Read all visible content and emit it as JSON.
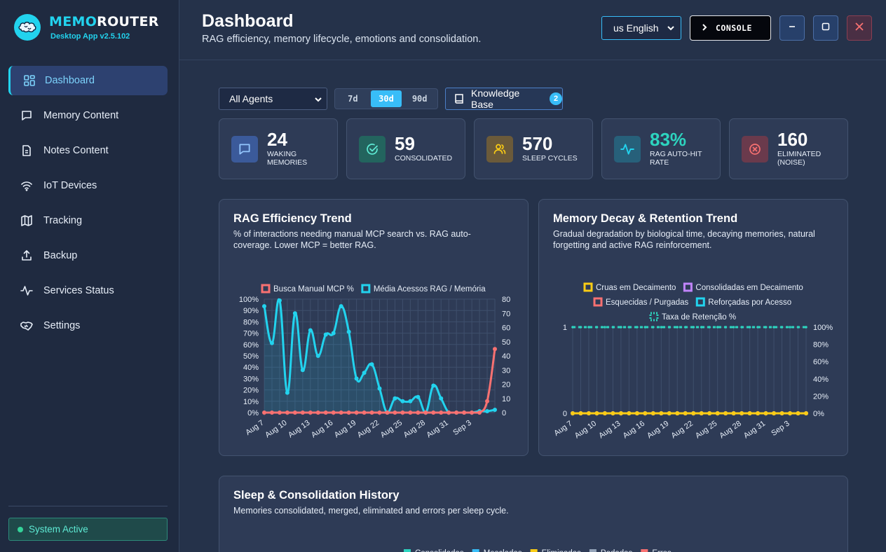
{
  "app": {
    "name_part1": "MEMO",
    "name_part2": "ROUTER",
    "version": "Desktop App v2.5.102"
  },
  "sidebar": {
    "items": [
      {
        "label": "Dashboard",
        "icon": "dashboard-icon",
        "active": true
      },
      {
        "label": "Memory Content",
        "icon": "message-icon"
      },
      {
        "label": "Notes Content",
        "icon": "file-text-icon"
      },
      {
        "label": "IoT Devices",
        "icon": "wifi-icon"
      },
      {
        "label": "Tracking",
        "icon": "map-icon"
      },
      {
        "label": "Backup",
        "icon": "upload-icon"
      },
      {
        "label": "Services Status",
        "icon": "activity-icon"
      },
      {
        "label": "Settings",
        "icon": "handshake-icon"
      }
    ],
    "status": "System Active"
  },
  "header": {
    "title": "Dashboard",
    "subtitle": "RAG efficiency, memory lifecycle, emotions and consolidation.",
    "language": "us English",
    "console_label": "CONSOLE"
  },
  "filters": {
    "agent": "All Agents",
    "ranges": [
      "7d",
      "30d",
      "90d"
    ],
    "active_range": "30d",
    "kb_label": "Knowledge Base",
    "kb_count": "2"
  },
  "stats": [
    {
      "value": "24",
      "label": "WAKING MEMORIES",
      "color": "#60a5fa"
    },
    {
      "value": "59",
      "label": "CONSOLIDATED",
      "color": "#2dd4bf"
    },
    {
      "value": "570",
      "label": "SLEEP CYCLES",
      "color": "#facc15"
    },
    {
      "value": "83%",
      "label": "RAG AUTO-HIT RATE",
      "color": "#22d3ee"
    },
    {
      "value": "160",
      "label": "ELIMINATED (NOISE)",
      "color": "#f87171"
    }
  ],
  "cards": {
    "rag": {
      "title": "RAG Efficiency Trend",
      "subtitle": "% of interactions needing manual MCP search vs. RAG auto-coverage. Lower MCP = better RAG."
    },
    "decay": {
      "title": "Memory Decay & Retention Trend",
      "subtitle": "Gradual degradation by biological time, decaying memories, natural forgetting and active RAG reinforcement."
    },
    "sleep": {
      "title": "Sleep & Consolidation History",
      "subtitle": "Memories consolidated, merged, eliminated and errors per sleep cycle.",
      "legend": [
        {
          "label": "Consolidadas",
          "color": "#2dd4bf"
        },
        {
          "label": "Mescladas",
          "color": "#38bdf8"
        },
        {
          "label": "Eliminadas",
          "color": "#facc15"
        },
        {
          "label": "Podadas",
          "color": "#94a3b8"
        },
        {
          "label": "Erros",
          "color": "#f87171"
        }
      ]
    }
  },
  "chart_data": [
    {
      "type": "line",
      "title": "RAG Efficiency Trend",
      "x": [
        "Aug 7",
        "Aug 8",
        "Aug 9",
        "Aug 10",
        "Aug 11",
        "Aug 12",
        "Aug 13",
        "Aug 14",
        "Aug 15",
        "Aug 16",
        "Aug 17",
        "Aug 18",
        "Aug 19",
        "Aug 20",
        "Aug 21",
        "Aug 22",
        "Aug 23",
        "Aug 24",
        "Aug 25",
        "Aug 26",
        "Aug 27",
        "Aug 28",
        "Aug 29",
        "Aug 30",
        "Aug 31",
        "Sep 1",
        "Sep 2",
        "Sep 3",
        "Sep 4",
        "Sep 5",
        "Sep 6"
      ],
      "tick_labels": [
        "Aug 7",
        "Aug 10",
        "Aug 13",
        "Aug 16",
        "Aug 19",
        "Aug 22",
        "Aug 25",
        "Aug 28",
        "Aug 31",
        "Sep 3"
      ],
      "series": [
        {
          "name": "Busca Manual MCP %",
          "axis": "left",
          "color": "#f87171",
          "values": [
            0,
            0,
            0,
            0,
            0,
            0,
            0,
            0,
            0,
            0,
            0,
            0,
            0,
            0,
            0,
            0,
            0,
            0,
            0,
            0,
            0,
            0,
            0,
            0,
            0,
            0,
            0,
            0,
            0,
            10,
            56
          ]
        },
        {
          "name": "Média Acessos RAG / Memória",
          "axis": "right",
          "color": "#22d3ee",
          "values": [
            75,
            49,
            79,
            14,
            70,
            30,
            58,
            40,
            55,
            56,
            75,
            57,
            24,
            28,
            34,
            17,
            0,
            10,
            8,
            8,
            11,
            0,
            19,
            10,
            0,
            0,
            0,
            0,
            1,
            1,
            2
          ]
        }
      ],
      "y_left": {
        "min": 0,
        "max": 100,
        "ticks": [
          "0%",
          "10%",
          "20%",
          "30%",
          "40%",
          "50%",
          "60%",
          "70%",
          "80%",
          "90%",
          "100%"
        ]
      },
      "y_right": {
        "min": 0,
        "max": 80,
        "ticks": [
          "0",
          "10",
          "20",
          "30",
          "40",
          "50",
          "60",
          "70",
          "80"
        ]
      },
      "grid": true,
      "legend": "top"
    },
    {
      "type": "line",
      "title": "Memory Decay & Retention Trend",
      "x": [
        "Aug 7",
        "Aug 8",
        "Aug 9",
        "Aug 10",
        "Aug 11",
        "Aug 12",
        "Aug 13",
        "Aug 14",
        "Aug 15",
        "Aug 16",
        "Aug 17",
        "Aug 18",
        "Aug 19",
        "Aug 20",
        "Aug 21",
        "Aug 22",
        "Aug 23",
        "Aug 24",
        "Aug 25",
        "Aug 26",
        "Aug 27",
        "Aug 28",
        "Aug 29",
        "Aug 30",
        "Aug 31",
        "Sep 1",
        "Sep 2",
        "Sep 3",
        "Sep 4",
        "Sep 5"
      ],
      "tick_labels": [
        "Aug 7",
        "Aug 10",
        "Aug 13",
        "Aug 16",
        "Aug 19",
        "Aug 22",
        "Aug 25",
        "Aug 28",
        "Aug 31",
        "Sep 3"
      ],
      "series": [
        {
          "name": "Cruas em Decaimento",
          "axis": "left",
          "color": "#facc15",
          "values": [
            0,
            0,
            0,
            0,
            0,
            0,
            0,
            0,
            0,
            0,
            0,
            0,
            0,
            0,
            0,
            0,
            0,
            0,
            0,
            0,
            0,
            0,
            0,
            0,
            0,
            0,
            0,
            0,
            0,
            0
          ]
        },
        {
          "name": "Consolidadas em Decaimento",
          "axis": "left",
          "color": "#c084fc",
          "values": [
            0,
            0,
            0,
            0,
            0,
            0,
            0,
            0,
            0,
            0,
            0,
            0,
            0,
            0,
            0,
            0,
            0,
            0,
            0,
            0,
            0,
            0,
            0,
            0,
            0,
            0,
            0,
            0,
            0,
            0
          ]
        },
        {
          "name": "Esquecidas / Purgadas",
          "axis": "left",
          "color": "#f87171",
          "values": [
            0,
            0,
            0,
            0,
            0,
            0,
            0,
            0,
            0,
            0,
            0,
            0,
            0,
            0,
            0,
            0,
            0,
            0,
            0,
            0,
            0,
            0,
            0,
            0,
            0,
            0,
            0,
            0,
            0,
            0
          ]
        },
        {
          "name": "Reforçadas por Acesso",
          "axis": "left",
          "color": "#22d3ee",
          "values": [
            0,
            0,
            0,
            0,
            0,
            0,
            0,
            0,
            0,
            0,
            0,
            0,
            0,
            0,
            0,
            0,
            0,
            0,
            0,
            0,
            0,
            0,
            0,
            0,
            0,
            0,
            0,
            0,
            0,
            0
          ]
        },
        {
          "name": "Taxa de Retenção %",
          "axis": "right",
          "color": "#2dd4bf",
          "dashed": true,
          "values": [
            100,
            100,
            100,
            100,
            100,
            100,
            100,
            100,
            100,
            100,
            100,
            100,
            100,
            100,
            100,
            100,
            100,
            100,
            100,
            100,
            100,
            100,
            100,
            100,
            100,
            100,
            100,
            100,
            100,
            100
          ]
        }
      ],
      "y_left": {
        "min": 0,
        "max": 1,
        "ticks": [
          "0",
          "1"
        ]
      },
      "y_right": {
        "min": 0,
        "max": 100,
        "ticks": [
          "0%",
          "20%",
          "40%",
          "60%",
          "80%",
          "100%"
        ]
      },
      "grid": true,
      "legend": "top"
    }
  ]
}
